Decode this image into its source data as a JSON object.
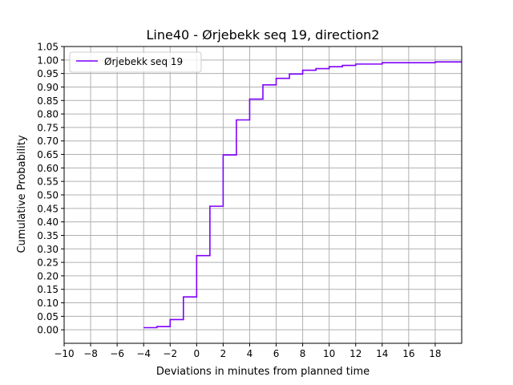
{
  "chart_data": {
    "type": "line",
    "step": "post",
    "title": "Line40 - Ørjebekk seq 19, direction2",
    "xlabel": "Deviations in minutes from planned time",
    "ylabel": "Cumulative Probability",
    "xlim": [
      -10,
      20
    ],
    "ylim": [
      -0.05,
      1.05
    ],
    "x_ticks": [
      -10,
      -8,
      -6,
      -4,
      -2,
      0,
      2,
      4,
      6,
      8,
      10,
      12,
      14,
      16,
      18
    ],
    "x_tick_labels": [
      "−10",
      "−8",
      "−6",
      "−4",
      "−2",
      "0",
      "2",
      "4",
      "6",
      "8",
      "10",
      "12",
      "14",
      "16",
      "18"
    ],
    "y_ticks": [
      0,
      0.05,
      0.1,
      0.15,
      0.2,
      0.25,
      0.3,
      0.35,
      0.4,
      0.45,
      0.5,
      0.55,
      0.6,
      0.65,
      0.7,
      0.75,
      0.8,
      0.85,
      0.9,
      0.95,
      1.0,
      1.05
    ],
    "y_tick_labels": [
      "0.00",
      "0.05",
      "0.10",
      "0.15",
      "0.20",
      "0.25",
      "0.30",
      "0.35",
      "0.40",
      "0.45",
      "0.50",
      "0.55",
      "0.60",
      "0.65",
      "0.70",
      "0.75",
      "0.80",
      "0.85",
      "0.90",
      "0.95",
      "1.00",
      "1.05"
    ],
    "grid": true,
    "legend_position": "upper-left",
    "series": [
      {
        "name": "Ørjebekk seq 19",
        "color": "#8000ff",
        "x": [
          -4,
          -3,
          -2,
          -1,
          0,
          1,
          2,
          3,
          4,
          5,
          6,
          7,
          8,
          9,
          10,
          11,
          12,
          14,
          18,
          20
        ],
        "y": [
          0.008,
          0.012,
          0.038,
          0.122,
          0.275,
          0.458,
          0.648,
          0.778,
          0.855,
          0.908,
          0.932,
          0.948,
          0.962,
          0.968,
          0.975,
          0.98,
          0.985,
          0.99,
          0.993,
          0.995
        ]
      }
    ]
  }
}
